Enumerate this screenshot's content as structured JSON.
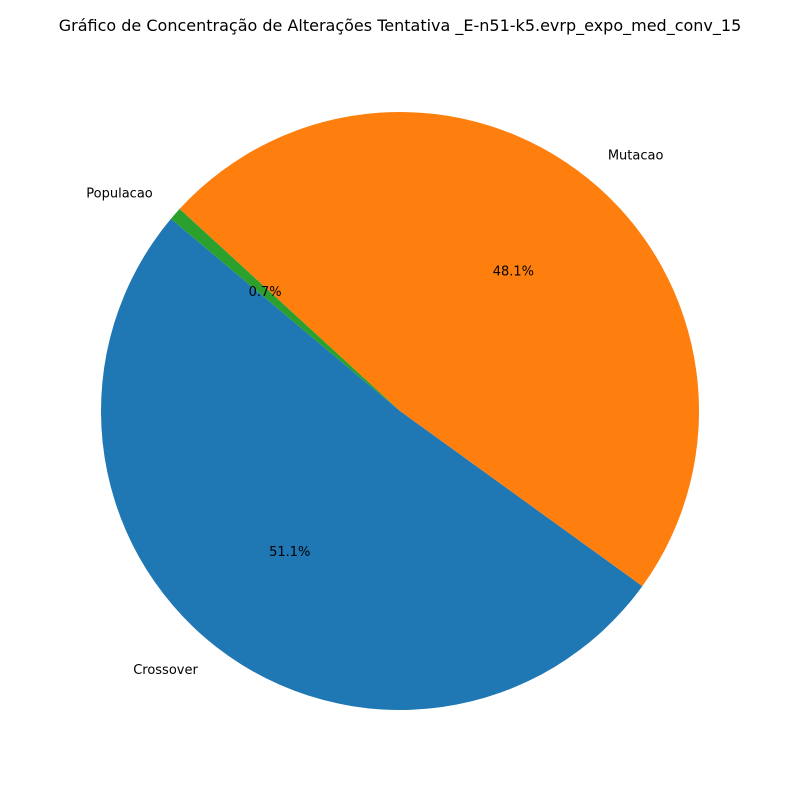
{
  "chart_data": {
    "type": "pie",
    "title": "Gráfico de Concentração de Alterações Tentativa _E-n51-k5.evrp_expo_med_conv_15",
    "categories": [
      "Crossover",
      "Mutacao",
      "Populacao"
    ],
    "values": [
      51.1,
      48.1,
      0.7
    ],
    "percent_labels": [
      "51.1%",
      "48.1%",
      "0.7%"
    ],
    "colors": [
      "#1f77b4",
      "#ff7f0e",
      "#2ca02c"
    ],
    "start_angle_deg": 140,
    "counterclockwise": true,
    "legend": "none"
  }
}
